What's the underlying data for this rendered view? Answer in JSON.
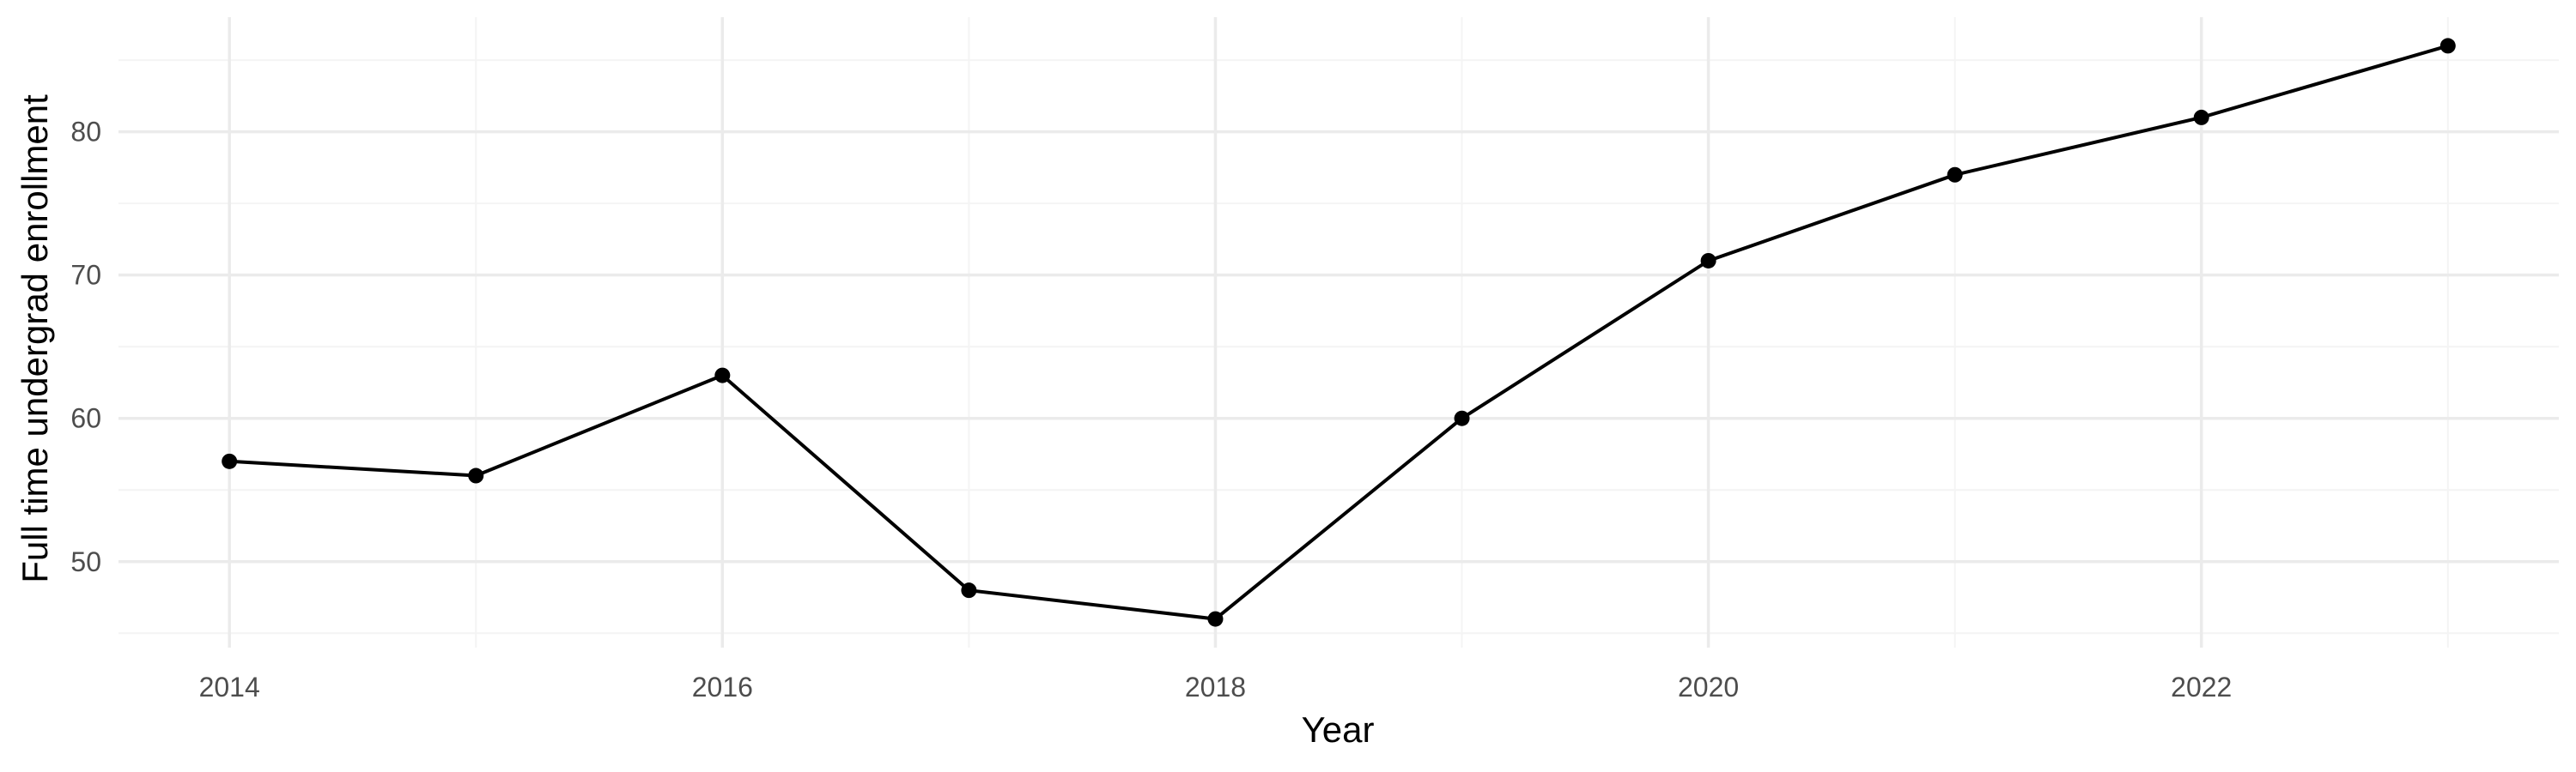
{
  "chart_data": {
    "type": "line",
    "title": "",
    "xlabel": "Year",
    "ylabel": "Full time undergrad enrollment",
    "x": [
      2014,
      2015,
      2016,
      2017,
      2018,
      2019,
      2020,
      2021,
      2022,
      2023
    ],
    "series": [
      {
        "values": [
          57,
          56,
          63,
          48,
          46,
          60,
          71,
          77,
          81,
          86
        ]
      }
    ],
    "xlim": [
      2013.55,
      2023.45
    ],
    "ylim": [
      44.0,
      88.0
    ],
    "x_ticks": [
      "2014",
      "2016",
      "2018",
      "2020",
      "2022"
    ],
    "y_ticks": [
      "50",
      "60",
      "70",
      "80"
    ],
    "grid": true,
    "legend": "none",
    "colors": {
      "line": "#000000",
      "grid_major": "#ebebeb",
      "grid_minor": "#f4f4f4",
      "tick_text": "#4d4d4d",
      "background": "#ffffff"
    }
  }
}
